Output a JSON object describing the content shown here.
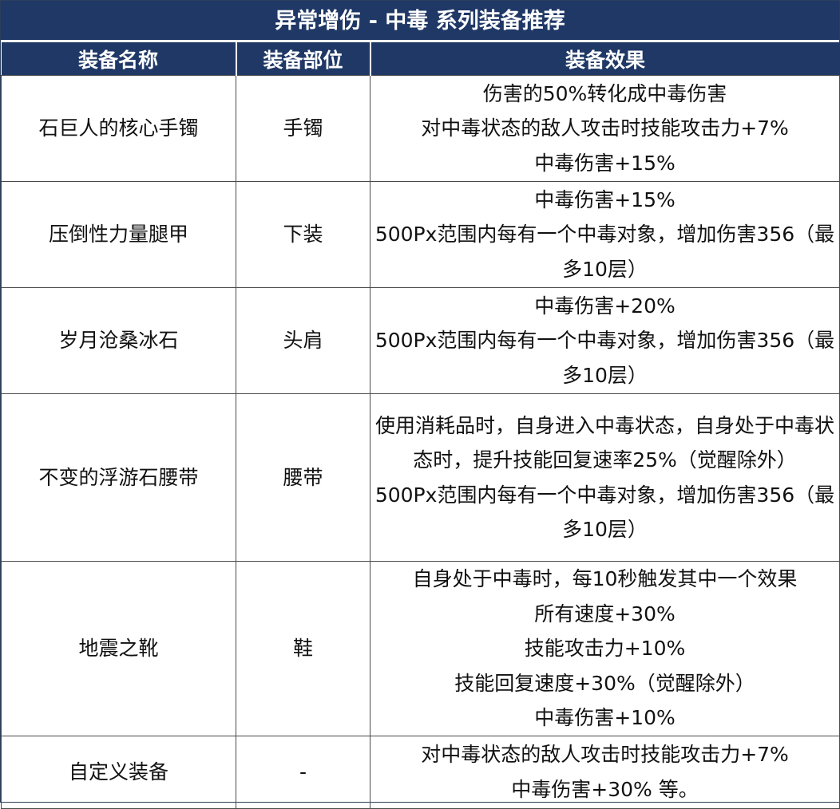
{
  "title": "异常增伤 - 中毒 系列装备推荐",
  "headers": {
    "name": "装备名称",
    "slot": "装备部位",
    "effect": "装备效果"
  },
  "rows": [
    {
      "name": "石巨人的核心手镯",
      "slot": "手镯",
      "effects": [
        "伤害的50%转化成中毒伤害",
        "对中毒状态的敌人攻击时技能攻击力+7%",
        "中毒伤害+15%"
      ]
    },
    {
      "name": "压倒性力量腿甲",
      "slot": "下装",
      "effects": [
        "中毒伤害+15%",
        "500Px范围内每有一个中毒对象，增加伤害356（最多10层）"
      ]
    },
    {
      "name": "岁月沧桑冰石",
      "slot": "头肩",
      "effects": [
        "中毒伤害+20%",
        "500Px范围内每有一个中毒对象，增加伤害356（最多10层）"
      ]
    },
    {
      "name": "不变的浮游石腰带",
      "slot": "腰带",
      "effects": [
        "使用消耗品时，自身进入中毒状态，自身处于中毒状态时，提升技能回复速率25%（觉醒除外）",
        "500Px范围内每有一个中毒对象，增加伤害356（最多10层）"
      ]
    },
    {
      "name": "地震之靴",
      "slot": "鞋",
      "effects": [
        "自身处于中毒时，每10秒触发其中一个效果",
        "所有速度+30%",
        "技能攻击力+10%",
        "技能回复速度+30%（觉醒除外）",
        "中毒伤害+10%"
      ]
    },
    {
      "name": "自定义装备",
      "slot": "-",
      "effects": [
        "对中毒状态的敌人攻击时技能攻击力+7%",
        "中毒伤害+30% 等。"
      ]
    }
  ]
}
